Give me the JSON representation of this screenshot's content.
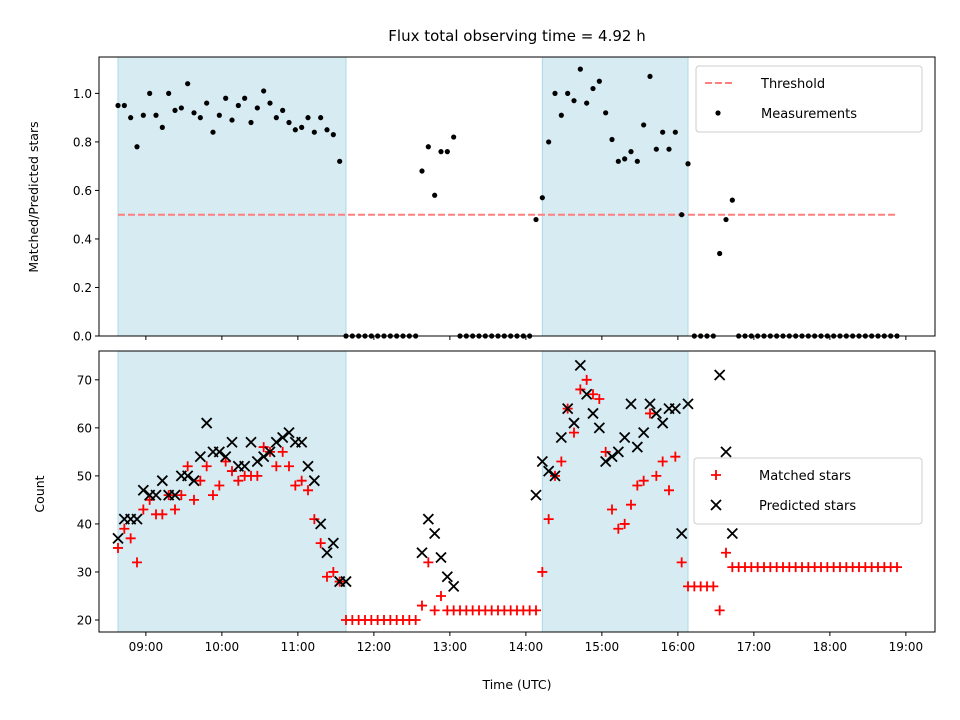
{
  "chart_data": [
    {
      "type": "scatter",
      "title": "Flux total observing time = 4.92 h",
      "xlabel": "",
      "ylabel": "Matched/Predicted stars",
      "ylim": [
        0,
        1.15
      ],
      "yticks": [
        0.0,
        0.2,
        0.4,
        0.6,
        0.8,
        1.0
      ],
      "ytick_labels": [
        "0.0",
        "0.2",
        "0.4",
        "0.6",
        "0.8",
        "1.0"
      ],
      "x_range": [
        "08:23",
        "19:23"
      ],
      "highlight_intervals": [
        [
          "08:38",
          "11:38"
        ],
        [
          "14:13",
          "16:08"
        ]
      ],
      "legend_position": "upper right",
      "series": [
        {
          "name": "Threshold",
          "kind": "dashed-line",
          "color": "#ff7f7f",
          "x": [
            "08:38",
            "18:53"
          ],
          "y": [
            0.5,
            0.5
          ]
        },
        {
          "name": "Measurements",
          "kind": "dot",
          "color": "#000000",
          "x": [
            "08:38",
            "08:43",
            "08:48",
            "08:53",
            "08:58",
            "09:03",
            "09:08",
            "09:13",
            "09:18",
            "09:23",
            "09:28",
            "09:33",
            "09:38",
            "09:43",
            "09:48",
            "09:53",
            "09:58",
            "10:03",
            "10:08",
            "10:13",
            "10:18",
            "10:23",
            "10:28",
            "10:33",
            "10:38",
            "10:43",
            "10:48",
            "10:53",
            "10:58",
            "11:03",
            "11:08",
            "11:13",
            "11:18",
            "11:23",
            "11:28",
            "11:33",
            "11:38",
            "11:43",
            "11:48",
            "11:53",
            "11:58",
            "12:03",
            "12:08",
            "12:13",
            "12:18",
            "12:23",
            "12:28",
            "12:33",
            "12:38",
            "12:43",
            "12:48",
            "12:53",
            "12:58",
            "13:03",
            "13:08",
            "13:13",
            "13:18",
            "13:23",
            "13:28",
            "13:33",
            "13:38",
            "13:43",
            "13:48",
            "13:53",
            "13:58",
            "14:03",
            "14:08",
            "14:13",
            "14:18",
            "14:23",
            "14:28",
            "14:33",
            "14:38",
            "14:43",
            "14:48",
            "14:53",
            "14:58",
            "15:03",
            "15:08",
            "15:13",
            "15:18",
            "15:23",
            "15:28",
            "15:33",
            "15:38",
            "15:43",
            "15:48",
            "15:53",
            "15:58",
            "16:03",
            "16:08",
            "16:13",
            "16:18",
            "16:23",
            "16:28",
            "16:33",
            "16:38",
            "16:43",
            "16:48",
            "16:53",
            "16:58",
            "17:03",
            "17:08",
            "17:13",
            "17:18",
            "17:23",
            "17:28",
            "17:33",
            "17:38",
            "17:43",
            "17:48",
            "17:53",
            "17:58",
            "18:03",
            "18:08",
            "18:13",
            "18:18",
            "18:23",
            "18:28",
            "18:33",
            "18:38",
            "18:43",
            "18:48",
            "18:53"
          ],
          "y": [
            0.95,
            0.95,
            0.9,
            0.78,
            0.91,
            1.0,
            0.91,
            0.86,
            1.0,
            0.93,
            0.94,
            1.04,
            0.92,
            0.9,
            0.96,
            0.84,
            0.91,
            0.98,
            0.89,
            0.95,
            0.98,
            0.88,
            0.94,
            1.01,
            0.96,
            0.9,
            0.93,
            0.88,
            0.85,
            0.86,
            0.9,
            0.84,
            0.9,
            0.85,
            0.83,
            0.72,
            0.0,
            0.0,
            0.0,
            0.0,
            0.0,
            0.0,
            0.0,
            0.0,
            0.0,
            0.0,
            0.0,
            0.0,
            0.68,
            0.78,
            0.58,
            0.76,
            0.76,
            0.82,
            0.0,
            0.0,
            0.0,
            0.0,
            0.0,
            0.0,
            0.0,
            0.0,
            0.0,
            0.0,
            0.0,
            0.0,
            0.48,
            0.57,
            0.8,
            1.0,
            0.91,
            1.0,
            0.97,
            1.1,
            0.96,
            1.02,
            1.05,
            0.92,
            0.81,
            0.72,
            0.73,
            0.76,
            0.72,
            0.87,
            1.07,
            0.77,
            0.84,
            0.77,
            0.84,
            0.5,
            0.71,
            0.0,
            0.0,
            0.0,
            0.0,
            0.34,
            0.48,
            0.56,
            0.0,
            0.0,
            0.0,
            0.0,
            0.0,
            0.0,
            0.0,
            0.0,
            0.0,
            0.0,
            0.0,
            0.0,
            0.0,
            0.0,
            0.0,
            0.0,
            0.0,
            0.0,
            0.0,
            0.0,
            0.0,
            0.0,
            0.0,
            0.0,
            0.0,
            0.0
          ]
        }
      ]
    },
    {
      "type": "scatter",
      "title": "",
      "xlabel": "Time (UTC)",
      "ylabel": "Count",
      "ylim": [
        17.5,
        76
      ],
      "yticks": [
        20,
        30,
        40,
        50,
        60,
        70
      ],
      "ytick_labels": [
        "20",
        "30",
        "40",
        "50",
        "60",
        "70"
      ],
      "xticks": [
        "09:00",
        "10:00",
        "11:00",
        "12:00",
        "13:00",
        "14:00",
        "15:00",
        "16:00",
        "17:00",
        "18:00",
        "19:00"
      ],
      "x_range": [
        "08:23",
        "19:23"
      ],
      "highlight_intervals": [
        [
          "08:38",
          "11:38"
        ],
        [
          "14:13",
          "16:08"
        ]
      ],
      "legend_position": "center right",
      "series": [
        {
          "name": "Matched stars",
          "kind": "plus",
          "color": "#ff0000",
          "x": [
            "08:38",
            "08:43",
            "08:48",
            "08:53",
            "08:58",
            "09:03",
            "09:08",
            "09:13",
            "09:18",
            "09:23",
            "09:28",
            "09:33",
            "09:38",
            "09:43",
            "09:48",
            "09:53",
            "09:58",
            "10:03",
            "10:08",
            "10:13",
            "10:18",
            "10:23",
            "10:28",
            "10:33",
            "10:38",
            "10:43",
            "10:48",
            "10:53",
            "10:58",
            "11:03",
            "11:08",
            "11:13",
            "11:18",
            "11:23",
            "11:28",
            "11:33",
            "11:38",
            "11:43",
            "11:48",
            "11:53",
            "11:58",
            "12:03",
            "12:08",
            "12:13",
            "12:18",
            "12:23",
            "12:28",
            "12:33",
            "12:38",
            "12:43",
            "12:48",
            "12:53",
            "12:58",
            "13:03",
            "13:08",
            "13:13",
            "13:18",
            "13:23",
            "13:28",
            "13:33",
            "13:38",
            "13:43",
            "13:48",
            "13:53",
            "13:58",
            "14:03",
            "14:08",
            "14:13",
            "14:18",
            "14:23",
            "14:28",
            "14:33",
            "14:38",
            "14:43",
            "14:48",
            "14:53",
            "14:58",
            "15:03",
            "15:08",
            "15:13",
            "15:18",
            "15:23",
            "15:28",
            "15:33",
            "15:38",
            "15:43",
            "15:48",
            "15:53",
            "15:58",
            "16:03",
            "16:08",
            "16:13",
            "16:18",
            "16:23",
            "16:28",
            "16:33",
            "16:38",
            "16:43",
            "16:48",
            "16:53",
            "16:58",
            "17:03",
            "17:08",
            "17:13",
            "17:18",
            "17:23",
            "17:28",
            "17:33",
            "17:38",
            "17:43",
            "17:48",
            "17:53",
            "17:58",
            "18:03",
            "18:08",
            "18:13",
            "18:18",
            "18:23",
            "18:28",
            "18:33",
            "18:38",
            "18:43",
            "18:48",
            "18:53"
          ],
          "y": [
            35,
            39,
            37,
            32,
            43,
            45,
            42,
            42,
            46,
            43,
            46,
            52,
            45,
            49,
            52,
            46,
            48,
            53,
            51,
            49,
            50,
            50,
            50,
            56,
            55,
            52,
            55,
            52,
            48,
            49,
            47,
            41,
            36,
            29,
            30,
            28,
            20,
            20,
            20,
            20,
            20,
            20,
            20,
            20,
            20,
            20,
            20,
            20,
            23,
            32,
            22,
            25,
            22,
            22,
            22,
            22,
            22,
            22,
            22,
            22,
            22,
            22,
            22,
            22,
            22,
            22,
            22,
            30,
            41,
            50,
            53,
            64,
            59,
            68,
            70,
            67,
            66,
            55,
            43,
            39,
            40,
            44,
            48,
            49,
            63,
            50,
            53,
            47,
            54,
            32,
            27,
            27,
            27,
            27,
            27,
            22,
            34,
            31,
            31,
            31,
            31,
            31,
            31,
            31,
            31,
            31,
            31,
            31,
            31,
            31,
            31,
            31,
            31,
            31,
            31,
            31,
            31,
            31,
            31,
            31,
            31,
            31,
            31,
            31
          ]
        },
        {
          "name": "Predicted stars",
          "kind": "x",
          "color": "#000000",
          "x": [
            "08:38",
            "08:43",
            "08:48",
            "08:53",
            "08:58",
            "09:03",
            "09:08",
            "09:13",
            "09:18",
            "09:23",
            "09:28",
            "09:33",
            "09:38",
            "09:43",
            "09:48",
            "09:53",
            "09:58",
            "10:03",
            "10:08",
            "10:13",
            "10:18",
            "10:23",
            "10:28",
            "10:33",
            "10:38",
            "10:43",
            "10:48",
            "10:53",
            "10:58",
            "11:03",
            "11:08",
            "11:13",
            "11:18",
            "11:23",
            "11:28",
            "11:33",
            "11:38",
            "12:38",
            "12:43",
            "12:48",
            "12:53",
            "12:58",
            "13:03",
            "14:08",
            "14:13",
            "14:18",
            "14:23",
            "14:28",
            "14:33",
            "14:38",
            "14:43",
            "14:48",
            "14:53",
            "14:58",
            "15:03",
            "15:08",
            "15:13",
            "15:18",
            "15:23",
            "15:28",
            "15:33",
            "15:38",
            "15:43",
            "15:48",
            "15:53",
            "15:58",
            "16:03",
            "16:08",
            "16:33",
            "16:38",
            "16:43"
          ],
          "y": [
            37,
            41,
            41,
            41,
            47,
            46,
            46,
            49,
            46,
            46,
            50,
            50,
            49,
            54,
            61,
            55,
            55,
            54,
            57,
            52,
            52,
            57,
            53,
            54,
            55,
            57,
            58,
            59,
            57,
            57,
            52,
            49,
            40,
            34,
            36,
            28,
            28,
            34,
            41,
            38,
            33,
            29,
            27,
            46,
            53,
            51,
            50,
            58,
            64,
            61,
            73,
            67,
            63,
            60,
            53,
            54,
            55,
            58,
            65,
            56,
            59,
            65,
            63,
            61,
            64,
            64,
            38,
            65,
            71,
            55,
            38
          ]
        }
      ]
    }
  ]
}
